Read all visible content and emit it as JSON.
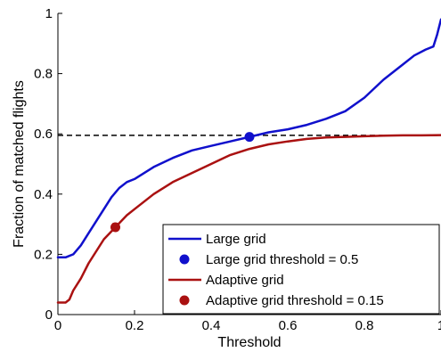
{
  "chart_data": {
    "type": "line",
    "xlabel": "Threshold",
    "ylabel": "Fraction of matched flights",
    "xlim": [
      0,
      1
    ],
    "ylim": [
      0,
      1
    ],
    "x_ticks": [
      0,
      0.2,
      0.4,
      0.6,
      0.8,
      1
    ],
    "x_tick_labels": [
      "0",
      "0.2",
      "0.4",
      "0.6",
      "0.8",
      "1"
    ],
    "y_ticks": [
      0,
      0.2,
      0.4,
      0.6,
      0.8,
      1
    ],
    "y_tick_labels": [
      "0",
      "0.2",
      "0.4",
      "0.6",
      "0.8",
      "1"
    ],
    "grid": false,
    "legend_position": "bottom-right",
    "reference_line": {
      "y": 0.595,
      "style": "dashed",
      "color": "#000000"
    },
    "series": [
      {
        "name": "Large grid",
        "color": "#1010cc",
        "x": [
          0,
          0.02,
          0.04,
          0.06,
          0.08,
          0.1,
          0.12,
          0.14,
          0.16,
          0.18,
          0.2,
          0.25,
          0.3,
          0.35,
          0.4,
          0.45,
          0.5,
          0.55,
          0.6,
          0.65,
          0.7,
          0.75,
          0.8,
          0.85,
          0.9,
          0.93,
          0.96,
          0.98,
          0.99,
          1.0
        ],
        "y": [
          0.19,
          0.19,
          0.2,
          0.23,
          0.27,
          0.31,
          0.35,
          0.39,
          0.42,
          0.44,
          0.45,
          0.49,
          0.52,
          0.545,
          0.56,
          0.575,
          0.59,
          0.605,
          0.615,
          0.63,
          0.65,
          0.675,
          0.72,
          0.78,
          0.83,
          0.86,
          0.88,
          0.89,
          0.93,
          0.98
        ]
      },
      {
        "name": "Adaptive grid",
        "color": "#aa1111",
        "x": [
          0,
          0.02,
          0.03,
          0.04,
          0.06,
          0.08,
          0.1,
          0.12,
          0.15,
          0.18,
          0.2,
          0.25,
          0.3,
          0.35,
          0.4,
          0.45,
          0.5,
          0.55,
          0.6,
          0.65,
          0.7,
          0.75,
          0.8,
          0.85,
          0.9,
          0.95,
          1.0
        ],
        "y": [
          0.04,
          0.04,
          0.05,
          0.08,
          0.12,
          0.17,
          0.21,
          0.25,
          0.29,
          0.33,
          0.35,
          0.4,
          0.44,
          0.47,
          0.5,
          0.53,
          0.55,
          0.565,
          0.575,
          0.583,
          0.588,
          0.59,
          0.592,
          0.594,
          0.595,
          0.595,
          0.596
        ]
      }
    ],
    "markers": [
      {
        "name": "Large grid threshold = 0.5",
        "x": 0.5,
        "y": 0.59,
        "color": "#1010cc"
      },
      {
        "name": "Adaptive grid threshold = 0.15",
        "x": 0.15,
        "y": 0.29,
        "color": "#aa1111"
      }
    ]
  }
}
